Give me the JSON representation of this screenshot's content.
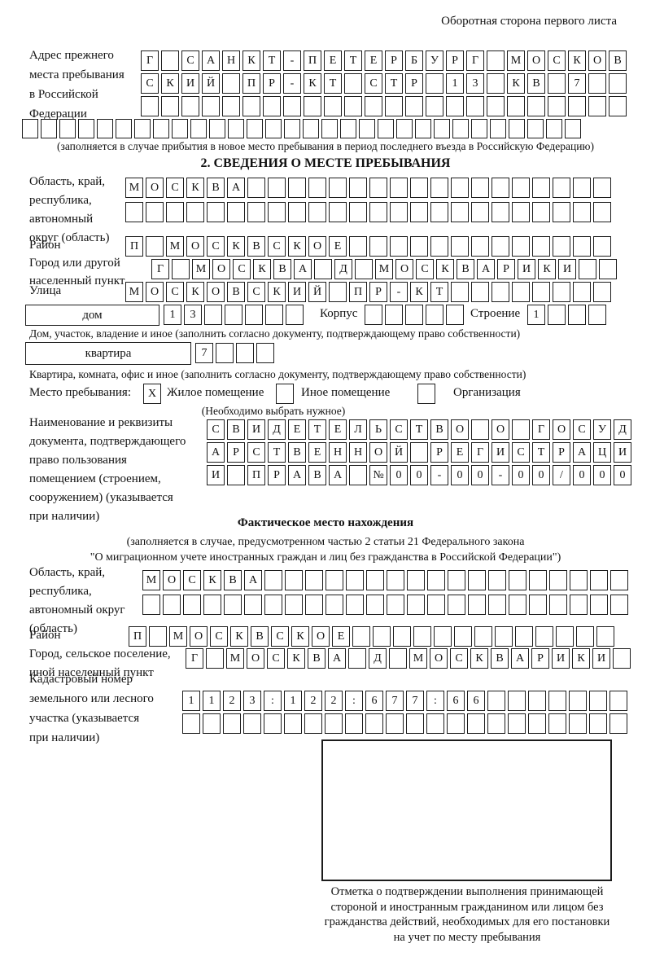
{
  "page": {
    "title": "Оборотная сторона первого листа"
  },
  "prev_address": {
    "label_lines": [
      "Адрес прежнего",
      "места пребывания",
      "в Российской",
      "Федерации"
    ],
    "row1": [
      "Г",
      "",
      "С",
      "А",
      "Н",
      "К",
      "Т",
      "-",
      "П",
      "Е",
      "Т",
      "Е",
      "Р",
      "Б",
      "У",
      "Р",
      "Г",
      "",
      "М",
      "О",
      "С",
      "К",
      "О",
      "В"
    ],
    "row2": [
      "С",
      "К",
      "И",
      "Й",
      "",
      "П",
      "Р",
      "-",
      "К",
      "Т",
      "",
      "С",
      "Т",
      "Р",
      "",
      "1",
      "3",
      "",
      "К",
      "В",
      "",
      "7",
      "",
      ""
    ],
    "row3": [
      "",
      "",
      "",
      "",
      "",
      "",
      "",
      "",
      "",
      "",
      "",
      "",
      "",
      "",
      "",
      "",
      "",
      "",
      "",
      "",
      "",
      "",
      "",
      ""
    ],
    "row4": [
      "",
      "",
      "",
      "",
      "",
      "",
      "",
      "",
      "",
      "",
      "",
      "",
      "",
      "",
      "",
      "",
      "",
      "",
      "",
      "",
      "",
      "",
      "",
      "",
      "",
      "",
      "",
      "",
      "",
      ""
    ],
    "note": "(заполняется в случае прибытия в новое место пребывания в период последнего въезда в Российскую Федерацию)"
  },
  "section2": {
    "header": "2. СВЕДЕНИЯ О МЕСТЕ ПРЕБЫВАНИЯ",
    "area": {
      "label_lines": [
        "Область, край,",
        "республика,",
        "автономный",
        "округ (область)"
      ],
      "row1": [
        "М",
        "О",
        "С",
        "К",
        "В",
        "А",
        "",
        "",
        "",
        "",
        "",
        "",
        "",
        "",
        "",
        "",
        "",
        "",
        "",
        "",
        "",
        "",
        "",
        ""
      ],
      "row2": [
        "",
        "",
        "",
        "",
        "",
        "",
        "",
        "",
        "",
        "",
        "",
        "",
        "",
        "",
        "",
        "",
        "",
        "",
        "",
        "",
        "",
        "",
        "",
        ""
      ]
    },
    "rayon": {
      "label": "Район",
      "row": [
        "П",
        "",
        "М",
        "О",
        "С",
        "К",
        "В",
        "С",
        "К",
        "О",
        "Е",
        "",
        "",
        "",
        "",
        "",
        "",
        "",
        "",
        "",
        "",
        "",
        "",
        ""
      ]
    },
    "city": {
      "label_lines": [
        "Город или другой",
        "населенный пункт"
      ],
      "row": [
        "Г",
        "",
        "М",
        "О",
        "С",
        "К",
        "В",
        "А",
        "",
        "Д",
        "",
        "М",
        "О",
        "С",
        "К",
        "В",
        "А",
        "Р",
        "И",
        "К",
        "И",
        "",
        ""
      ]
    },
    "street": {
      "label": "Улица",
      "row": [
        "М",
        "О",
        "С",
        "К",
        "О",
        "В",
        "С",
        "К",
        "И",
        "Й",
        "",
        "П",
        "Р",
        "-",
        "К",
        "Т",
        "",
        "",
        "",
        "",
        "",
        "",
        "",
        ""
      ]
    },
    "house": {
      "box_label": "дом",
      "cells": [
        "1",
        "3",
        "",
        "",
        "",
        "",
        ""
      ],
      "korpus_label": "Корпус",
      "korpus_cells": [
        "",
        "",
        "",
        "",
        ""
      ],
      "stroenie_label": "Строение",
      "stroenie_cells": [
        "1",
        "",
        "",
        ""
      ],
      "note": "Дом, участок, владение и иное (заполнить согласно документу, подтверждающему право собственности)"
    },
    "apartment": {
      "box_label": "квартира",
      "cells": [
        "7",
        "",
        "",
        ""
      ],
      "note": "Квартира, комната, офис и иное (заполнить согласно документу, подтверждающему право собственности)"
    },
    "stay_type": {
      "label": "Место пребывания:",
      "checked_mark": "X",
      "options": [
        "Жилое помещение",
        "Иное помещение",
        "Организация"
      ],
      "hint": "(Необходимо выбрать нужное)"
    },
    "doc": {
      "label_lines": [
        "Наименование и реквизиты",
        "документа, подтверждающего",
        "право пользования",
        "помещением (строением,",
        "сооружением) (указывается",
        "при наличии)"
      ],
      "row1": [
        "С",
        "В",
        "И",
        "Д",
        "Е",
        "Т",
        "Е",
        "Л",
        "Ь",
        "С",
        "Т",
        "В",
        "О",
        "",
        "О",
        "",
        "Г",
        "О",
        "С",
        "У",
        "Д"
      ],
      "row2": [
        "А",
        "Р",
        "С",
        "Т",
        "В",
        "Е",
        "Н",
        "Н",
        "О",
        "Й",
        "",
        "Р",
        "Е",
        "Г",
        "И",
        "С",
        "Т",
        "Р",
        "А",
        "Ц",
        "И"
      ],
      "row3": [
        "И",
        "",
        "П",
        "Р",
        "А",
        "В",
        "А",
        "",
        "№",
        "0",
        "0",
        "-",
        "0",
        "0",
        "-",
        "0",
        "0",
        "/",
        "0",
        "0",
        "0"
      ]
    }
  },
  "actual_location": {
    "header": "Фактическое место нахождения",
    "note_lines": [
      "(заполняется в случае, предусмотренном частью 2 статьи 21 Федерального закона",
      "\"О миграционном учете иностранных граждан и лиц без гражданства в Российской Федерации\")"
    ],
    "area": {
      "label_lines": [
        "Область, край,",
        "республика,",
        "автономный округ",
        "(область)"
      ],
      "row1": [
        "М",
        "О",
        "С",
        "К",
        "В",
        "А",
        "",
        "",
        "",
        "",
        "",
        "",
        "",
        "",
        "",
        "",
        "",
        "",
        "",
        "",
        "",
        "",
        "",
        ""
      ],
      "row2": [
        "",
        "",
        "",
        "",
        "",
        "",
        "",
        "",
        "",
        "",
        "",
        "",
        "",
        "",
        "",
        "",
        "",
        "",
        "",
        "",
        "",
        "",
        "",
        ""
      ]
    },
    "rayon": {
      "label": "Район",
      "row": [
        "П",
        "",
        "М",
        "О",
        "С",
        "К",
        "В",
        "С",
        "К",
        "О",
        "Е",
        "",
        "",
        "",
        "",
        "",
        "",
        "",
        "",
        "",
        "",
        "",
        "",
        ""
      ]
    },
    "city": {
      "label_lines": [
        "Город, сельское поселение,",
        "иной населенный пункт"
      ],
      "row": [
        "Г",
        "",
        "М",
        "О",
        "С",
        "К",
        "В",
        "А",
        "",
        "Д",
        "",
        "М",
        "О",
        "С",
        "К",
        "В",
        "А",
        "Р",
        "И",
        "К",
        "И",
        ""
      ]
    },
    "cadastre": {
      "label_lines": [
        "Кадастровый номер",
        "земельного или лесного",
        "участка (указывается",
        "при наличии)"
      ],
      "row1": [
        "1",
        "1",
        "2",
        "3",
        ":",
        "1",
        "2",
        "2",
        ":",
        "6",
        "7",
        "7",
        ":",
        "6",
        "6",
        "",
        "",
        "",
        "",
        "",
        "",
        ""
      ],
      "row2": [
        "",
        "",
        "",
        "",
        "",
        "",
        "",
        "",
        "",
        "",
        "",
        "",
        "",
        "",
        "",
        "",
        "",
        "",
        "",
        "",
        "",
        ""
      ]
    },
    "stamp_caption_lines": [
      "Отметка о подтверждении выполнения принимающей",
      "стороной и иностранным гражданином или лицом без",
      "гражданства действий, необходимых для его постановки",
      "на учет по месту пребывания"
    ]
  }
}
